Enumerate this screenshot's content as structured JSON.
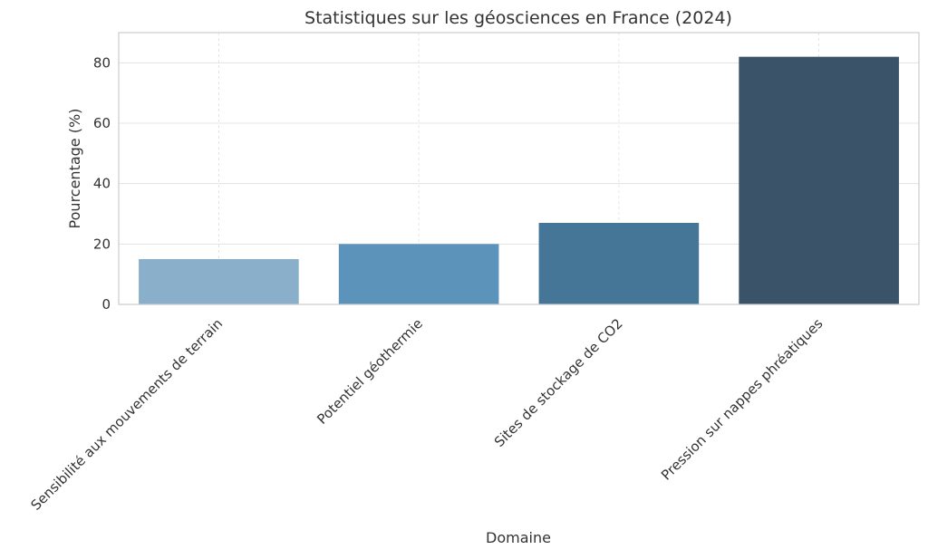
{
  "chart_data": {
    "type": "bar",
    "title": "Statistiques sur les géosciences en France (2024)",
    "xlabel": "Domaine",
    "ylabel": "Pourcentage (%)",
    "categories": [
      "Sensibilité aux mouvements de terrain",
      "Potentiel géothermie",
      "Sites de stockage de CO2",
      "Pression sur nappes phréatiques"
    ],
    "values": [
      15,
      20,
      27,
      82
    ],
    "colors": [
      "#89afca",
      "#5b93bb",
      "#457597",
      "#3b5368"
    ],
    "ylim": [
      0,
      90
    ],
    "yticks": [
      0,
      20,
      40,
      60,
      80
    ],
    "ytick_labels": [
      "0",
      "20",
      "40",
      "60",
      "80"
    ],
    "grid": true,
    "legend": "none"
  }
}
